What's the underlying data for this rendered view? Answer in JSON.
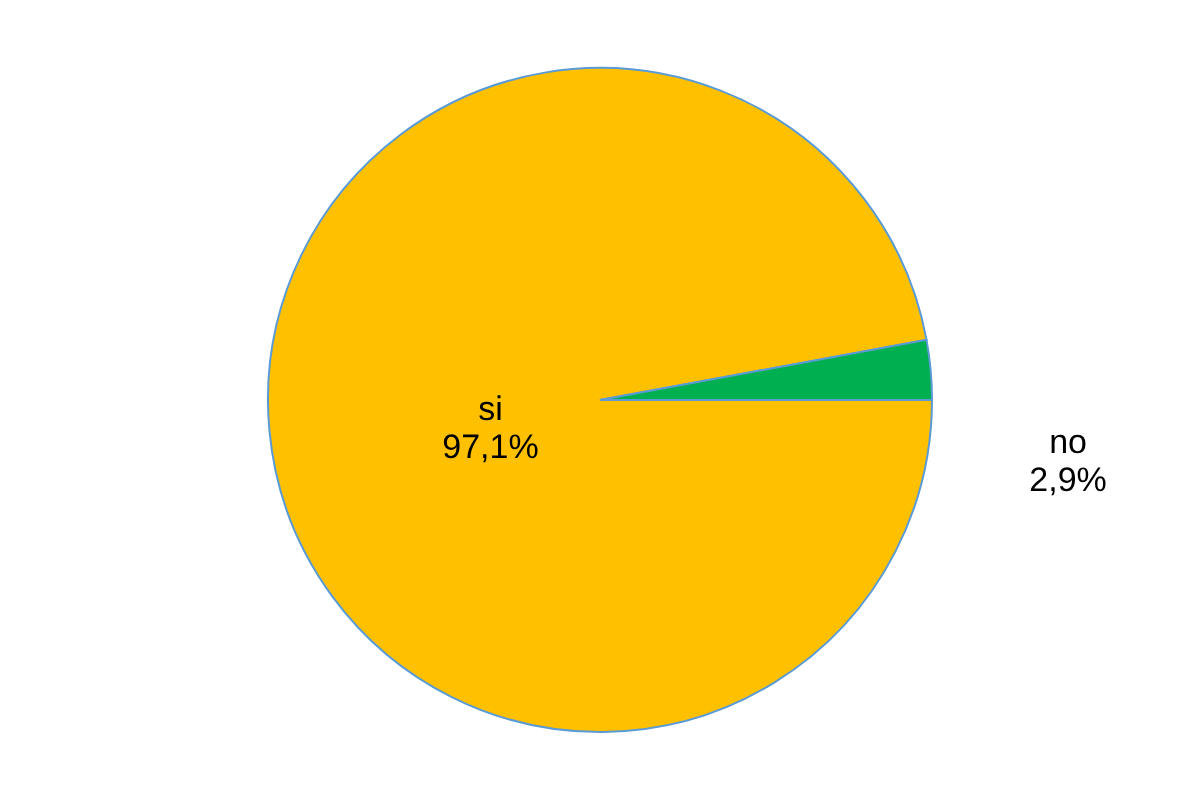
{
  "chart_data": {
    "type": "pie",
    "categories": [
      "si",
      "no"
    ],
    "values": [
      97.1,
      2.9
    ],
    "value_labels": [
      "97,1%",
      "2,9%"
    ],
    "colors": [
      "#ffc000",
      "#00b050"
    ]
  }
}
